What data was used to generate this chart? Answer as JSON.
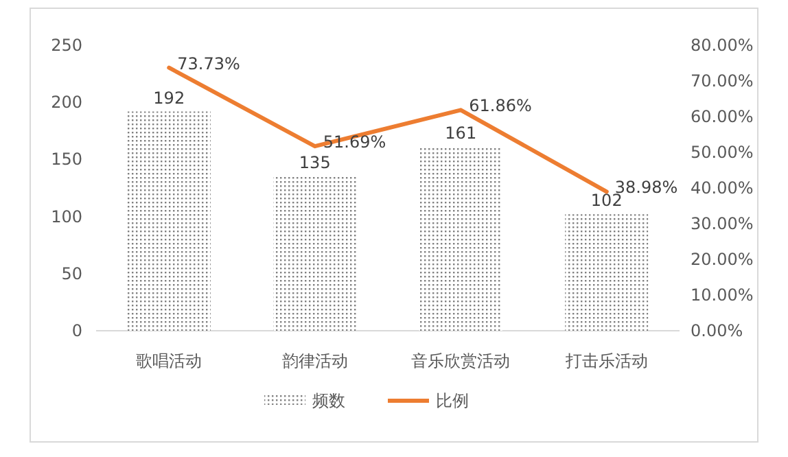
{
  "chart_data": {
    "type": "bar",
    "categories": [
      "歌唱活动",
      "韵律活动",
      "音乐欣赏活动",
      "打击乐活动"
    ],
    "series": [
      {
        "name": "频数",
        "color": "#808080",
        "values": [
          192,
          135,
          161,
          102
        ],
        "value_labels": [
          "192",
          "135",
          "161",
          "102"
        ]
      },
      {
        "name": "比例",
        "type": "line",
        "axis": "y2",
        "color": "#ed7d31",
        "values": [
          73.73,
          51.69,
          61.86,
          38.98
        ],
        "value_labels": [
          "73.73%",
          "51.69%",
          "61.86%",
          "38.98%"
        ]
      }
    ],
    "ylim": [
      0,
      250
    ],
    "yticks": [
      0,
      50,
      100,
      150,
      200,
      250
    ],
    "y2lim": [
      0,
      80
    ],
    "y2ticks": [
      {
        "value": 0,
        "label": "0.00%"
      },
      {
        "value": 10,
        "label": "10.00%"
      },
      {
        "value": 20,
        "label": "20.00%"
      },
      {
        "value": 30,
        "label": "30.00%"
      },
      {
        "value": 40,
        "label": "40.00%"
      },
      {
        "value": 50,
        "label": "50.00%"
      },
      {
        "value": 60,
        "label": "60.00%"
      },
      {
        "value": 70,
        "label": "70.00%"
      },
      {
        "value": 80,
        "label": "80.00%"
      }
    ],
    "legend": "bottom",
    "marker": "none",
    "line_style": "solid"
  }
}
